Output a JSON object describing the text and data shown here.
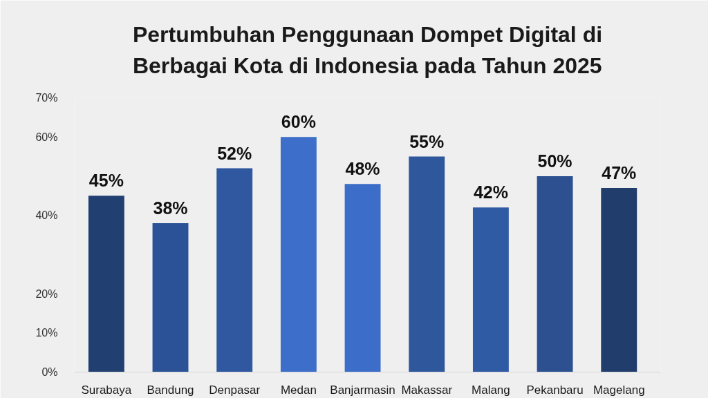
{
  "chart_data": {
    "type": "bar",
    "title": "Pertumbuhan Penggunaan Dompet Digital di Berbagai Kota di Indonesia pada Tahun 2025",
    "categories": [
      "Surabaya",
      "Bandung",
      "Denpasar",
      "Medan",
      "Banjarmasin",
      "Makassar",
      "Malang",
      "Pekanbaru",
      "Magelang"
    ],
    "values": [
      45,
      38,
      52,
      60,
      48,
      55,
      42,
      50,
      47
    ],
    "value_labels": [
      "45%",
      "38%",
      "52%",
      "60%",
      "48%",
      "55%",
      "42%",
      "50%",
      "47%"
    ],
    "colors": [
      "#223f72",
      "#2b5296",
      "#2f58a0",
      "#3d6fca",
      "#3c6dc9",
      "#2e579c",
      "#2f5aa4",
      "#2d5190",
      "#213d6c"
    ],
    "ylim": [
      0,
      70
    ],
    "yticks": [
      {
        "value": 0,
        "label": "0%"
      },
      {
        "value": 10,
        "label": "10%"
      },
      {
        "value": 20,
        "label": "20%"
      },
      {
        "value": 40,
        "label": "40%"
      },
      {
        "value": 60,
        "label": "60%"
      },
      {
        "value": 70,
        "label": "70%"
      }
    ]
  }
}
